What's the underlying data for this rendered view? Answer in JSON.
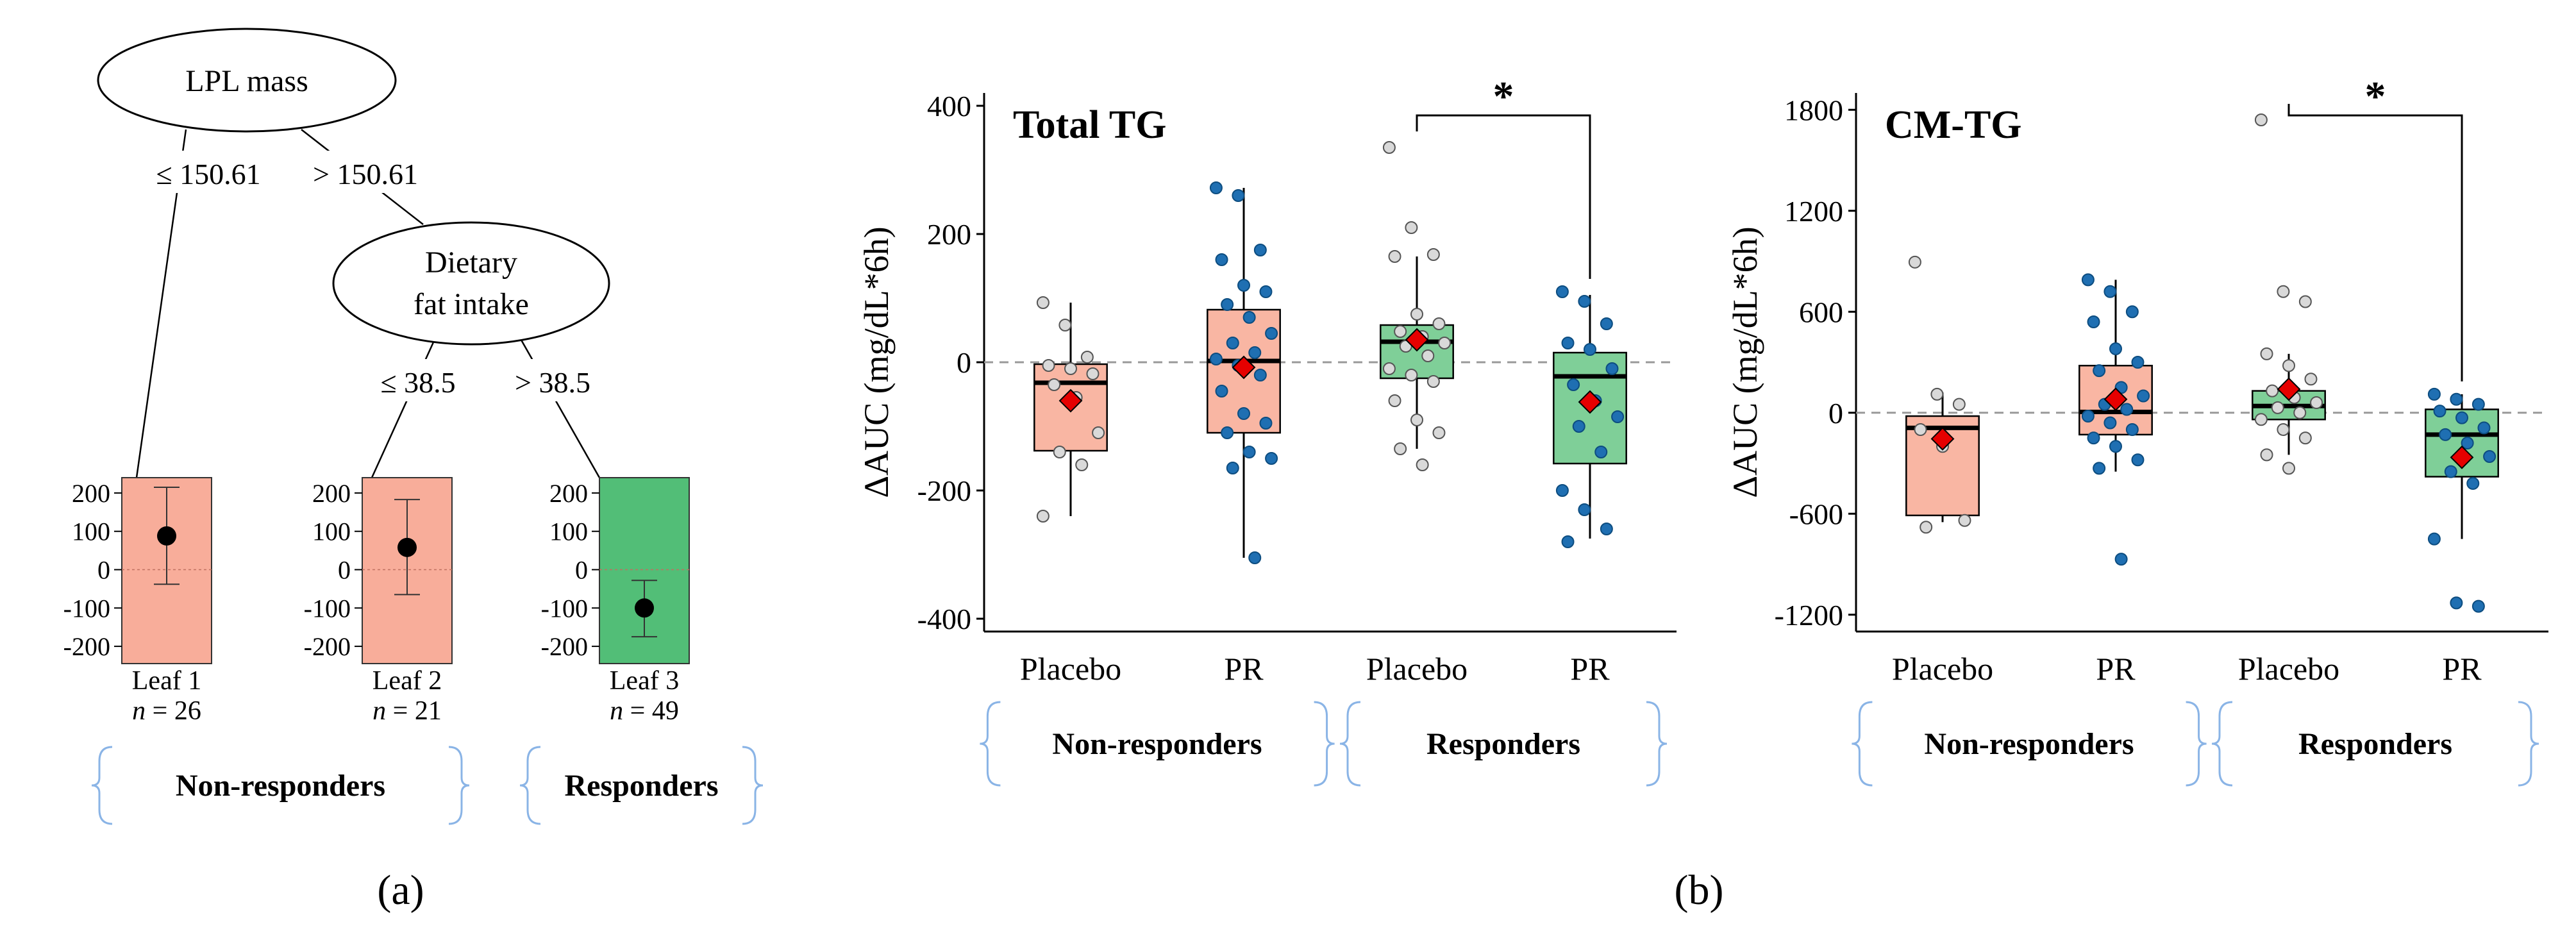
{
  "tree": {
    "root": "LPL mass",
    "root_left_rule": "≤ 150.61",
    "root_right_rule": "> 150.61",
    "node2_line1": "Dietary",
    "node2_line2": "fat intake",
    "node2_left_rule": "≤ 38.5",
    "node2_right_rule": "> 38.5",
    "leaf_ticks": [
      "200",
      "100",
      "0",
      "-100",
      "-200"
    ],
    "leaves": [
      {
        "label": "Leaf 1",
        "n_label": "n",
        "n_text": " = 26",
        "mean": 88,
        "lo": -38,
        "hi": 215,
        "color": "#f8ad9a"
      },
      {
        "label": "Leaf 2",
        "n_label": "n",
        "n_text": " = 21",
        "mean": 58,
        "lo": -65,
        "hi": 183,
        "color": "#f8ad9a"
      },
      {
        "label": "Leaf 3",
        "n_label": "n",
        "n_text": " = 49",
        "mean": -100,
        "lo": -175,
        "hi": -28,
        "color": "#52be77"
      }
    ],
    "groups": [
      "Non-responders",
      "Responders"
    ],
    "panel_label": "(a)"
  },
  "panel_b_label": "(b)",
  "colors": {
    "placebo_nonresp": "#f9b6a3",
    "pr_nonresp": "#f9b6a3",
    "placebo_resp": "#7fcf98",
    "pr_resp": "#7fcf98",
    "placebo_point": "#d9d9d9",
    "pr_point": "#1f6fb2",
    "mean_marker": "#e60000",
    "bracket": "#8ab4e6"
  },
  "chart_data": [
    {
      "type": "box",
      "title": "Total TG",
      "ylabel": "ΔAUC (mg/dL*6h)",
      "ylim": [
        -420,
        420
      ],
      "yticks": [
        400,
        200,
        0,
        -200,
        -400
      ],
      "categories": [
        "Placebo",
        "PR",
        "Placebo",
        "PR"
      ],
      "groups": [
        "Non-responders",
        "Responders"
      ],
      "significance": "*",
      "boxes": [
        {
          "q1": -138,
          "median": -32,
          "q3": -3,
          "whisker_low": -240,
          "whisker_high": 93,
          "mean": -60,
          "points": [
            93,
            58,
            8,
            -5,
            -10,
            -18,
            -35,
            -55,
            -110,
            -140,
            -160,
            -240
          ]
        },
        {
          "q1": -110,
          "median": 2,
          "q3": 82,
          "whisker_low": -305,
          "whisker_high": 272,
          "mean": -8,
          "points": [
            272,
            260,
            175,
            160,
            120,
            110,
            90,
            70,
            45,
            30,
            15,
            5,
            -5,
            -20,
            -45,
            -80,
            -95,
            -110,
            -140,
            -150,
            -165,
            -305
          ]
        },
        {
          "q1": -25,
          "median": 32,
          "q3": 58,
          "whisker_low": -135,
          "whisker_high": 165,
          "mean": 35,
          "points": [
            335,
            210,
            168,
            165,
            75,
            60,
            48,
            40,
            30,
            25,
            10,
            -10,
            -20,
            -30,
            -60,
            -90,
            -110,
            -135,
            -160
          ]
        },
        {
          "q1": -158,
          "median": -22,
          "q3": 15,
          "whisker_low": -275,
          "whisker_high": 105,
          "mean": -62,
          "points": [
            110,
            95,
            60,
            30,
            20,
            -10,
            -35,
            -60,
            -85,
            -100,
            -140,
            -200,
            -230,
            -260,
            -280
          ]
        }
      ]
    },
    {
      "type": "box",
      "title": "CM-TG",
      "ylabel": "ΔAUC (mg/dL*6h)",
      "ylim": [
        -1300,
        1900
      ],
      "yticks": [
        1800,
        1200,
        600,
        0,
        -600,
        -1200
      ],
      "categories": [
        "Placebo",
        "PR",
        "Placebo",
        "PR"
      ],
      "groups": [
        "Non-responders",
        "Responders"
      ],
      "significance": "*",
      "boxes": [
        {
          "q1": -610,
          "median": -90,
          "q3": -20,
          "whisker_low": -650,
          "whisker_high": 120,
          "mean": -155,
          "points": [
            895,
            110,
            50,
            -100,
            -200,
            -640,
            -680
          ]
        },
        {
          "q1": -130,
          "median": 5,
          "q3": 280,
          "whisker_low": -350,
          "whisker_high": 790,
          "mean": 80,
          "points": [
            790,
            720,
            600,
            540,
            380,
            300,
            250,
            150,
            100,
            50,
            20,
            -20,
            -60,
            -100,
            -150,
            -200,
            -280,
            -330,
            -870
          ]
        },
        {
          "q1": -40,
          "median": 40,
          "q3": 130,
          "whisker_low": -250,
          "whisker_high": 350,
          "mean": 140,
          "points": [
            1740,
            720,
            660,
            350,
            280,
            200,
            130,
            90,
            60,
            30,
            0,
            -40,
            -100,
            -150,
            -250,
            -330
          ]
        },
        {
          "q1": -380,
          "median": -130,
          "q3": 20,
          "whisker_low": -750,
          "whisker_high": 110,
          "mean": -265,
          "points": [
            110,
            80,
            50,
            10,
            -30,
            -90,
            -130,
            -180,
            -260,
            -350,
            -420,
            -750,
            -1130,
            -1150
          ]
        }
      ]
    }
  ]
}
